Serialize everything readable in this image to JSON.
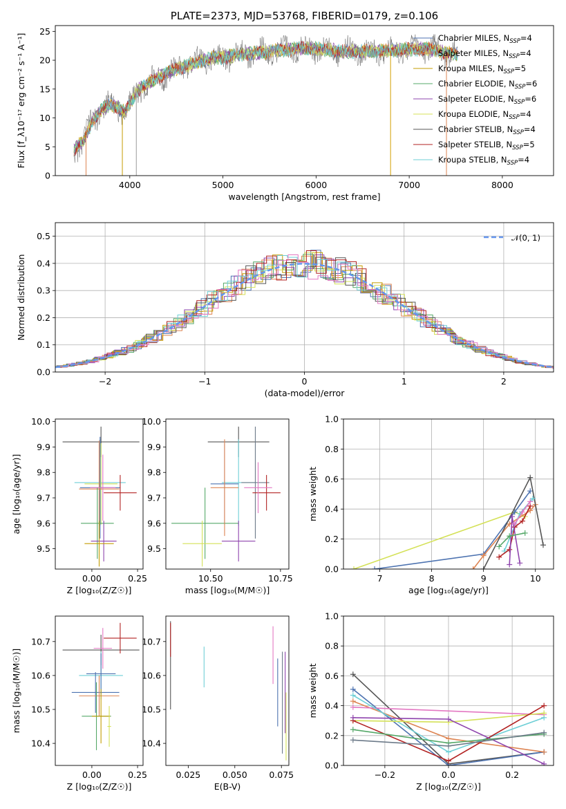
{
  "chart_data": [
    {
      "id": "spectrum",
      "type": "line",
      "title": "PLATE=2373, MJD=53768, FIBERID=0179, z=0.106",
      "xlabel": "wavelength [Angstrom, rest frame]",
      "ylabel": "Flux [f_λ10⁻¹⁷ erg cm⁻² s⁻¹ A⁻¹]",
      "xlim": [
        3200,
        8550
      ],
      "ylim": [
        0,
        26
      ],
      "xticks": [
        "4000",
        "5000",
        "6000",
        "7000",
        "8000"
      ],
      "yticks": [
        "0",
        "5",
        "10",
        "15",
        "20",
        "25"
      ],
      "observed_continuum": {
        "x": [
          3400,
          3500,
          3600,
          3700,
          3800,
          3950,
          4000,
          4100,
          4300,
          4500,
          4700,
          4900,
          5000,
          5200,
          5500,
          5800,
          6000,
          6300,
          6600,
          6900,
          7200,
          7500
        ],
        "y": [
          4.5,
          6.0,
          9.5,
          11.5,
          12.5,
          11.0,
          12.5,
          15.0,
          17.0,
          18.5,
          19.5,
          20.5,
          20.5,
          21.0,
          21.5,
          22.0,
          22.0,
          21.5,
          21.5,
          21.8,
          22.0,
          21.0
        ]
      },
      "legend": {
        "placement": "right",
        "entries": [
          {
            "label": "Chabrier MILES, N",
            "sub": "SSP",
            "suffix": "=4",
            "color": "#4c72b0"
          },
          {
            "label": "Salpeter MILES, N",
            "sub": "SSP",
            "suffix": "=4",
            "color": "#dd8452"
          },
          {
            "label": "Kroupa MILES, N",
            "sub": "SSP",
            "suffix": "=5",
            "color": "#c49c00"
          },
          {
            "label": "Chabrier ELODIE, N",
            "sub": "SSP",
            "suffix": "=6",
            "color": "#55a868"
          },
          {
            "label": "Salpeter ELODIE, N",
            "sub": "SSP",
            "suffix": "=6",
            "color": "#8e44ad"
          },
          {
            "label": "Kroupa ELODIE, N",
            "sub": "SSP",
            "suffix": "=4",
            "color": "#d4e157"
          },
          {
            "label": "Chabrier STELIB, N",
            "sub": "SSP",
            "suffix": "=4",
            "color": "#555555"
          },
          {
            "label": "Salpeter STELIB, N",
            "sub": "SSP",
            "suffix": "=5",
            "color": "#b22222"
          },
          {
            "label": "Kroupa STELIB, N",
            "sub": "SSP",
            "suffix": "=4",
            "color": "#6ecfd6"
          }
        ]
      }
    },
    {
      "id": "residuals",
      "type": "histogram",
      "xlabel": "(data-model)/error",
      "ylabel": "Normed distribution",
      "xlim": [
        -2.5,
        2.5
      ],
      "ylim": [
        0,
        0.55
      ],
      "xticks": [
        "−2",
        "−1",
        "0",
        "1",
        "2"
      ],
      "yticks": [
        "0.0",
        "0.1",
        "0.2",
        "0.3",
        "0.4",
        "0.5"
      ],
      "grid": true,
      "legend_label": "𝒩(0, 1)",
      "legend_placement": "top-right",
      "bin_width": 0.1
    },
    {
      "id": "age-vs-Z",
      "type": "errorbar",
      "xlabel": "Z [log₁₀(Z/Z☉)]",
      "ylabel": "age  [log₁₀(age/yr)]",
      "xlim": [
        -0.2,
        0.28
      ],
      "ylim": [
        9.42,
        10.01
      ],
      "xticks": [
        "0.00",
        "0.25"
      ],
      "yticks": [
        "9.5",
        "9.6",
        "9.7",
        "9.8",
        "9.9",
        "10.0"
      ],
      "points": [
        {
          "x": 0.05,
          "y": 9.92,
          "xerr": 0.21,
          "yerr": 0.06,
          "color": "#555555"
        },
        {
          "x": 0.045,
          "y": 9.76,
          "xerr": 0.14,
          "yerr": 0.17,
          "color": "#6ecfd6"
        },
        {
          "x": 0.05,
          "y": 9.755,
          "xerr": 0.09,
          "yerr": 0.16,
          "color": "#d4e157"
        },
        {
          "x": 0.045,
          "y": 9.74,
          "xerr": 0.11,
          "yerr": 0.2,
          "color": "#4c72b0"
        },
        {
          "x": 0.04,
          "y": 9.735,
          "xerr": 0.11,
          "yerr": 0.19,
          "color": "#dd8452"
        },
        {
          "x": 0.06,
          "y": 9.74,
          "xerr": 0.07,
          "yerr": 0.13,
          "color": "#e377c2"
        },
        {
          "x": 0.155,
          "y": 9.72,
          "xerr": 0.09,
          "yerr": 0.07,
          "color": "#b22222"
        },
        {
          "x": 0.03,
          "y": 9.6,
          "xerr": 0.09,
          "yerr": 0.14,
          "color": "#55a868"
        },
        {
          "x": 0.065,
          "y": 9.53,
          "xerr": 0.07,
          "yerr": 0.08,
          "color": "#8e44ad"
        },
        {
          "x": 0.04,
          "y": 9.52,
          "xerr": 0.08,
          "yerr": 0.09,
          "color": "#c49c00"
        }
      ]
    },
    {
      "id": "age-vs-mass",
      "type": "errorbar",
      "xlabel": "mass [log₁₀(M/M☉)]",
      "ylabel": "",
      "xlim": [
        10.34,
        10.78
      ],
      "ylim": [
        9.42,
        10.01
      ],
      "xticks": [
        "10.50",
        "10.75"
      ],
      "yticks": [
        "9.5",
        "9.6",
        "9.7",
        "9.8",
        "9.9",
        "10.0"
      ],
      "points": [
        {
          "x": 10.6,
          "y": 9.92,
          "xerr": 0.11,
          "yerr": 0.06,
          "color": "#555555"
        },
        {
          "x": 10.6,
          "y": 9.76,
          "xerr": 0.06,
          "yerr": 0.17,
          "color": "#6ecfd6"
        },
        {
          "x": 10.48,
          "y": 9.6,
          "xerr": 0.12,
          "yerr": 0.14,
          "color": "#55a868"
        },
        {
          "x": 10.55,
          "y": 9.755,
          "xerr": 0.05,
          "yerr": 0.16,
          "color": "#4c72b0"
        },
        {
          "x": 10.55,
          "y": 9.74,
          "xerr": 0.05,
          "yerr": 0.19,
          "color": "#dd8452"
        },
        {
          "x": 10.66,
          "y": 9.76,
          "xerr": 0.05,
          "yerr": 0.22,
          "color": "#6c7a89"
        },
        {
          "x": 10.7,
          "y": 9.72,
          "xerr": 0.05,
          "yerr": 0.07,
          "color": "#b22222"
        },
        {
          "x": 10.6,
          "y": 9.53,
          "xerr": 0.06,
          "yerr": 0.08,
          "color": "#8e44ad"
        },
        {
          "x": 10.47,
          "y": 9.52,
          "xerr": 0.07,
          "yerr": 0.09,
          "color": "#d4e157"
        },
        {
          "x": 10.67,
          "y": 9.74,
          "xerr": 0.05,
          "yerr": 0.1,
          "color": "#e377c2"
        }
      ]
    },
    {
      "id": "massweight-vs-age",
      "type": "line",
      "xlabel": "age  [log₁₀(age/yr)]",
      "ylabel": "mass weight",
      "xlim": [
        6.3,
        10.35
      ],
      "ylim": [
        0,
        1.0
      ],
      "xticks": [
        "7",
        "8",
        "9",
        "10"
      ],
      "yticks": [
        "0.0",
        "0.2",
        "0.4",
        "0.6",
        "0.8",
        "1.0"
      ],
      "grid": true,
      "series": [
        {
          "color": "#d4e157",
          "x": [
            6.5,
            9.6,
            9.8
          ],
          "y": [
            0.0,
            0.38,
            0.35
          ]
        },
        {
          "color": "#4c72b0",
          "x": [
            6.9,
            9.0,
            9.6,
            9.9
          ],
          "y": [
            0.0,
            0.1,
            0.38,
            0.52
          ]
        },
        {
          "color": "#dd8452",
          "x": [
            8.8,
            9.0,
            9.5,
            9.9,
            10.0
          ],
          "y": [
            0.0,
            0.09,
            0.3,
            0.39,
            0.43
          ]
        },
        {
          "color": "#555555",
          "x": [
            9.0,
            9.9,
            10.15
          ],
          "y": [
            0.0,
            0.61,
            0.16
          ]
        },
        {
          "color": "#6ecfd6",
          "x": [
            9.4,
            9.7,
            9.95
          ],
          "y": [
            0.12,
            0.37,
            0.47
          ]
        },
        {
          "color": "#b22222",
          "x": [
            9.3,
            9.5,
            9.6,
            9.75,
            9.9
          ],
          "y": [
            0.08,
            0.13,
            0.28,
            0.32,
            0.42
          ]
        },
        {
          "color": "#8e44ad",
          "x": [
            9.5,
            9.55,
            9.7
          ],
          "y": [
            0.03,
            0.35,
            0.04
          ]
        },
        {
          "color": "#55a868",
          "x": [
            9.3,
            9.5,
            9.8
          ],
          "y": [
            0.15,
            0.22,
            0.24
          ]
        },
        {
          "color": "#e377c2",
          "x": [
            9.6,
            9.75,
            9.9
          ],
          "y": [
            0.3,
            0.38,
            0.45
          ]
        }
      ]
    },
    {
      "id": "mass-vs-Z",
      "type": "errorbar",
      "xlabel": "Z [log₁₀(Z/Z☉)]",
      "ylabel": "mass [log₁₀(M/M☉)]",
      "xlim": [
        -0.2,
        0.28
      ],
      "ylim": [
        10.335,
        10.775
      ],
      "xticks": [
        "0.00",
        "0.25"
      ],
      "yticks": [
        "10.4",
        "10.5",
        "10.6",
        "10.7"
      ],
      "points": [
        {
          "x": 0.05,
          "y": 10.675,
          "xerr": 0.21,
          "yerr": 0.045,
          "color": "#555555"
        },
        {
          "x": 0.155,
          "y": 10.71,
          "xerr": 0.09,
          "yerr": 0.045,
          "color": "#b22222"
        },
        {
          "x": 0.06,
          "y": 10.68,
          "xerr": 0.05,
          "yerr": 0.06,
          "color": "#e377c2"
        },
        {
          "x": 0.05,
          "y": 10.6,
          "xerr": 0.12,
          "yerr": 0.07,
          "color": "#6ecfd6"
        },
        {
          "x": 0.05,
          "y": 10.605,
          "xerr": 0.08,
          "yerr": 0.06,
          "color": "#4c72b0"
        },
        {
          "x": 0.02,
          "y": 10.55,
          "xerr": 0.13,
          "yerr": 0.06,
          "color": "#4c72b0"
        },
        {
          "x": 0.04,
          "y": 10.54,
          "xerr": 0.11,
          "yerr": 0.06,
          "color": "#dd8452"
        },
        {
          "x": 0.025,
          "y": 10.48,
          "xerr": 0.08,
          "yerr": 0.1,
          "color": "#55a868"
        },
        {
          "x": 0.05,
          "y": 10.48,
          "xerr": 0.05,
          "yerr": 0.08,
          "color": "#c49c00"
        },
        {
          "x": 0.095,
          "y": 10.45,
          "xerr": 0.01,
          "yerr": 0.06,
          "color": "#d4e157"
        }
      ]
    },
    {
      "id": "mass-vs-EBV",
      "type": "errorbar",
      "xlabel": "E(B-V)",
      "ylabel": "",
      "xlim": [
        0.013,
        0.079
      ],
      "ylim": [
        10.335,
        10.775
      ],
      "xticks": [
        "0.025",
        "0.050",
        "0.075"
      ],
      "yticks": [
        "10.4",
        "10.5",
        "10.6",
        "10.7"
      ],
      "points": [
        {
          "x": 0.0155,
          "y": 10.63,
          "yerr": 0.13,
          "color": "#555555"
        },
        {
          "x": 0.0155,
          "y": 10.705,
          "yerr": 0.05,
          "color": "#b22222"
        },
        {
          "x": 0.0335,
          "y": 10.625,
          "yerr": 0.06,
          "color": "#6ecfd6"
        },
        {
          "x": 0.0705,
          "y": 10.66,
          "yerr": 0.085,
          "color": "#e377c2"
        },
        {
          "x": 0.073,
          "y": 10.55,
          "yerr": 0.1,
          "color": "#4c72b0"
        },
        {
          "x": 0.0755,
          "y": 10.52,
          "yerr": 0.15,
          "color": "#6c7a89"
        },
        {
          "x": 0.077,
          "y": 10.55,
          "yerr": 0.12,
          "color": "#8e44ad"
        },
        {
          "x": 0.0775,
          "y": 10.45,
          "yerr": 0.1,
          "color": "#d4e157"
        }
      ]
    },
    {
      "id": "massweight-vs-Z",
      "type": "line",
      "xlabel": "Z [log₁₀(Z/Z☉)]",
      "ylabel": "mass weight",
      "xlim": [
        -0.33,
        0.33
      ],
      "ylim": [
        0,
        1.0
      ],
      "xticks": [
        "−0.2",
        "0.0",
        "0.2"
      ],
      "yticks": [
        "0.0",
        "0.2",
        "0.4",
        "0.6",
        "0.8",
        "1.0"
      ],
      "grid": true,
      "series": [
        {
          "color": "#555555",
          "x": [
            -0.3,
            0.0,
            0.3
          ],
          "y": [
            0.61,
            0.01,
            0.09
          ]
        },
        {
          "color": "#4c72b0",
          "x": [
            -0.3,
            0.0,
            0.3
          ],
          "y": [
            0.51,
            0.0,
            0.09
          ]
        },
        {
          "color": "#dd8452",
          "x": [
            -0.3,
            0.0,
            0.3
          ],
          "y": [
            0.43,
            0.18,
            0.09
          ]
        },
        {
          "color": "#e377c2",
          "x": [
            -0.3,
            0.3
          ],
          "y": [
            0.39,
            0.34
          ]
        },
        {
          "color": "#6ecfd6",
          "x": [
            -0.3,
            0.0,
            0.3
          ],
          "y": [
            0.47,
            0.09,
            0.32
          ]
        },
        {
          "color": "#d4e157",
          "x": [
            -0.3,
            0.0,
            0.3
          ],
          "y": [
            0.3,
            0.29,
            0.35
          ]
        },
        {
          "color": "#b22222",
          "x": [
            -0.3,
            0.0,
            0.3
          ],
          "y": [
            0.3,
            0.03,
            0.4
          ]
        },
        {
          "color": "#8e44ad",
          "x": [
            -0.3,
            0.0,
            0.3
          ],
          "y": [
            0.32,
            0.31,
            0.01
          ]
        },
        {
          "color": "#55a868",
          "x": [
            -0.3,
            0.0,
            0.3
          ],
          "y": [
            0.24,
            0.15,
            0.21
          ]
        },
        {
          "color": "#6c7a89",
          "x": [
            -0.3,
            0.0,
            0.3
          ],
          "y": [
            0.17,
            0.13,
            0.22
          ]
        }
      ]
    }
  ]
}
